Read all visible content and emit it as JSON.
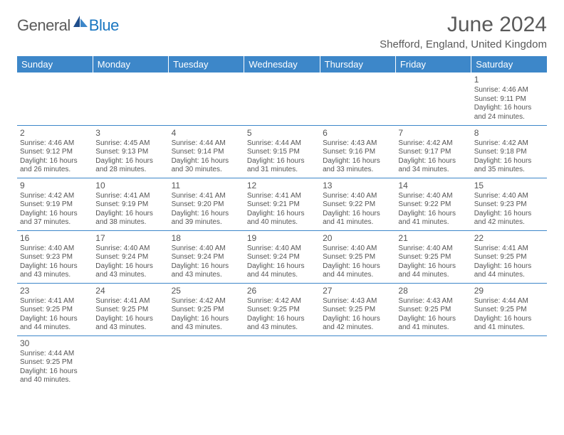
{
  "logo": {
    "text1": "General",
    "text2": "Blue",
    "color1": "#5a5a5a",
    "color2": "#1976c1"
  },
  "title": "June 2024",
  "location": "Shefford, England, United Kingdom",
  "header_bg": "#3d87c9",
  "header_fg": "#ffffff",
  "border_color": "#3d87c9",
  "text_color": "#555555",
  "days_of_week": [
    "Sunday",
    "Monday",
    "Tuesday",
    "Wednesday",
    "Thursday",
    "Friday",
    "Saturday"
  ],
  "weeks": [
    [
      null,
      null,
      null,
      null,
      null,
      null,
      {
        "d": "1",
        "sunrise": "4:46 AM",
        "sunset": "9:11 PM",
        "dl": "16 hours and 24 minutes."
      }
    ],
    [
      {
        "d": "2",
        "sunrise": "4:46 AM",
        "sunset": "9:12 PM",
        "dl": "16 hours and 26 minutes."
      },
      {
        "d": "3",
        "sunrise": "4:45 AM",
        "sunset": "9:13 PM",
        "dl": "16 hours and 28 minutes."
      },
      {
        "d": "4",
        "sunrise": "4:44 AM",
        "sunset": "9:14 PM",
        "dl": "16 hours and 30 minutes."
      },
      {
        "d": "5",
        "sunrise": "4:44 AM",
        "sunset": "9:15 PM",
        "dl": "16 hours and 31 minutes."
      },
      {
        "d": "6",
        "sunrise": "4:43 AM",
        "sunset": "9:16 PM",
        "dl": "16 hours and 33 minutes."
      },
      {
        "d": "7",
        "sunrise": "4:42 AM",
        "sunset": "9:17 PM",
        "dl": "16 hours and 34 minutes."
      },
      {
        "d": "8",
        "sunrise": "4:42 AM",
        "sunset": "9:18 PM",
        "dl": "16 hours and 35 minutes."
      }
    ],
    [
      {
        "d": "9",
        "sunrise": "4:42 AM",
        "sunset": "9:19 PM",
        "dl": "16 hours and 37 minutes."
      },
      {
        "d": "10",
        "sunrise": "4:41 AM",
        "sunset": "9:19 PM",
        "dl": "16 hours and 38 minutes."
      },
      {
        "d": "11",
        "sunrise": "4:41 AM",
        "sunset": "9:20 PM",
        "dl": "16 hours and 39 minutes."
      },
      {
        "d": "12",
        "sunrise": "4:41 AM",
        "sunset": "9:21 PM",
        "dl": "16 hours and 40 minutes."
      },
      {
        "d": "13",
        "sunrise": "4:40 AM",
        "sunset": "9:22 PM",
        "dl": "16 hours and 41 minutes."
      },
      {
        "d": "14",
        "sunrise": "4:40 AM",
        "sunset": "9:22 PM",
        "dl": "16 hours and 41 minutes."
      },
      {
        "d": "15",
        "sunrise": "4:40 AM",
        "sunset": "9:23 PM",
        "dl": "16 hours and 42 minutes."
      }
    ],
    [
      {
        "d": "16",
        "sunrise": "4:40 AM",
        "sunset": "9:23 PM",
        "dl": "16 hours and 43 minutes."
      },
      {
        "d": "17",
        "sunrise": "4:40 AM",
        "sunset": "9:24 PM",
        "dl": "16 hours and 43 minutes."
      },
      {
        "d": "18",
        "sunrise": "4:40 AM",
        "sunset": "9:24 PM",
        "dl": "16 hours and 43 minutes."
      },
      {
        "d": "19",
        "sunrise": "4:40 AM",
        "sunset": "9:24 PM",
        "dl": "16 hours and 44 minutes."
      },
      {
        "d": "20",
        "sunrise": "4:40 AM",
        "sunset": "9:25 PM",
        "dl": "16 hours and 44 minutes."
      },
      {
        "d": "21",
        "sunrise": "4:40 AM",
        "sunset": "9:25 PM",
        "dl": "16 hours and 44 minutes."
      },
      {
        "d": "22",
        "sunrise": "4:41 AM",
        "sunset": "9:25 PM",
        "dl": "16 hours and 44 minutes."
      }
    ],
    [
      {
        "d": "23",
        "sunrise": "4:41 AM",
        "sunset": "9:25 PM",
        "dl": "16 hours and 44 minutes."
      },
      {
        "d": "24",
        "sunrise": "4:41 AM",
        "sunset": "9:25 PM",
        "dl": "16 hours and 43 minutes."
      },
      {
        "d": "25",
        "sunrise": "4:42 AM",
        "sunset": "9:25 PM",
        "dl": "16 hours and 43 minutes."
      },
      {
        "d": "26",
        "sunrise": "4:42 AM",
        "sunset": "9:25 PM",
        "dl": "16 hours and 43 minutes."
      },
      {
        "d": "27",
        "sunrise": "4:43 AM",
        "sunset": "9:25 PM",
        "dl": "16 hours and 42 minutes."
      },
      {
        "d": "28",
        "sunrise": "4:43 AM",
        "sunset": "9:25 PM",
        "dl": "16 hours and 41 minutes."
      },
      {
        "d": "29",
        "sunrise": "4:44 AM",
        "sunset": "9:25 PM",
        "dl": "16 hours and 41 minutes."
      }
    ],
    [
      {
        "d": "30",
        "sunrise": "4:44 AM",
        "sunset": "9:25 PM",
        "dl": "16 hours and 40 minutes."
      },
      null,
      null,
      null,
      null,
      null,
      null
    ]
  ],
  "labels": {
    "sunrise": "Sunrise:",
    "sunset": "Sunset:",
    "daylight": "Daylight:"
  }
}
